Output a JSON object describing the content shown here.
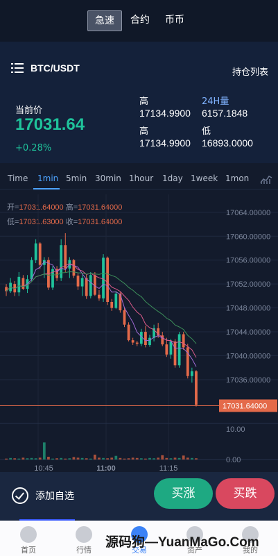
{
  "top_tabs": [
    {
      "label": "急速",
      "active": true
    },
    {
      "label": "合约",
      "active": false
    },
    {
      "label": "币币",
      "active": false
    }
  ],
  "header": {
    "pair": "BTC/USDT",
    "holdings_label": "持仓列表",
    "price_label": "当前价",
    "price": "17031.64",
    "change": "+0.28%",
    "stats": {
      "high1_label": "高",
      "high1_value": "17134.9900",
      "volume_label": "24H量",
      "volume_value": "6157.1848",
      "high2_label": "高",
      "high2_value": "17134.9900",
      "low_label": "低",
      "low_value": "16893.0000"
    }
  },
  "intervals": [
    "Time",
    "1min",
    "5min",
    "30min",
    "1hour",
    "1day",
    "1week",
    "1mon"
  ],
  "active_interval": "1min",
  "ohlc": {
    "open_label": "开=",
    "open": "17031.64000",
    "high_label": "高=",
    "high": "17031.64000",
    "low_label": "低=",
    "low": "17031.63000",
    "close_label": "收=",
    "close": "17031.64000"
  },
  "chart_data": {
    "type": "candlestick",
    "y_ticks": [
      "17064.00000",
      "17060.00000",
      "17056.00000",
      "17052.00000",
      "17048.00000",
      "17044.00000",
      "17040.00000",
      "17036.00000"
    ],
    "y_tick_values": [
      17064,
      17060,
      17056,
      17052,
      17048,
      17044,
      17040,
      17036
    ],
    "ylim": [
      17031,
      17067
    ],
    "current_price_label": "17031.64000",
    "current_price": 17031.64,
    "volume_ticks": [
      "10.00",
      "0.00"
    ],
    "volume_ylim": [
      0,
      10
    ],
    "x_ticks": [
      "10:45",
      "11:00",
      "11:15"
    ],
    "candles": [
      [
        17051.5,
        17052,
        17050,
        17050.8
      ],
      [
        17050.8,
        17053,
        17050.5,
        17052.2
      ],
      [
        17052,
        17052.5,
        17050,
        17050.6
      ],
      [
        17050.6,
        17054,
        17050,
        17053.2
      ],
      [
        17053,
        17053.5,
        17051,
        17051.2
      ],
      [
        17051.2,
        17053.5,
        17050.5,
        17052.8
      ],
      [
        17052.8,
        17056.5,
        17052.5,
        17056
      ],
      [
        17056,
        17059.5,
        17055.5,
        17058.8
      ],
      [
        17058.8,
        17059,
        17054.5,
        17055.2
      ],
      [
        17055.2,
        17056.5,
        17053,
        17056
      ],
      [
        17056,
        17056.5,
        17051,
        17051.4
      ],
      [
        17051.4,
        17055,
        17051,
        17054.5
      ],
      [
        17054.5,
        17055,
        17052.5,
        17053
      ],
      [
        17053,
        17059.5,
        17052.5,
        17058.5
      ],
      [
        17058.5,
        17060.5,
        17054,
        17054.6
      ],
      [
        17054.6,
        17056.5,
        17053,
        17056
      ],
      [
        17056,
        17056.2,
        17053,
        17053.4
      ],
      [
        17053.4,
        17053.8,
        17051,
        17051.6
      ],
      [
        17051.6,
        17053.5,
        17050,
        17053
      ],
      [
        17053,
        17053.6,
        17049.5,
        17050
      ],
      [
        17050,
        17054,
        17049.6,
        17053.5
      ],
      [
        17053.5,
        17054,
        17050,
        17050.2
      ],
      [
        17050.2,
        17051,
        17049.2,
        17049.6
      ],
      [
        17049.6,
        17057,
        17049,
        17056.4
      ],
      [
        17056.4,
        17056.6,
        17048.5,
        17049
      ],
      [
        17049,
        17049.5,
        17047.5,
        17048
      ],
      [
        17048,
        17050.8,
        17047.8,
        17050.4
      ],
      [
        17050.4,
        17050.6,
        17047.2,
        17047.6
      ],
      [
        17047.6,
        17048,
        17044.8,
        17045.2
      ],
      [
        17045.2,
        17045.6,
        17042.4,
        17042.6
      ],
      [
        17042.6,
        17043,
        17041.8,
        17042.2
      ],
      [
        17042.2,
        17042.5,
        17041.6,
        17042
      ],
      [
        17042,
        17044.5,
        17041.6,
        17044
      ],
      [
        17044,
        17045,
        17041.4,
        17041.8
      ],
      [
        17041.8,
        17043.5,
        17041.5,
        17043
      ],
      [
        17043,
        17045.2,
        17042.4,
        17044.6
      ],
      [
        17044.6,
        17045.5,
        17043,
        17043.4
      ],
      [
        17043.4,
        17044,
        17041.6,
        17041.9
      ],
      [
        17041.9,
        17043,
        17039.8,
        17040.2
      ],
      [
        17040.2,
        17042.8,
        17039.5,
        17042.4
      ],
      [
        17042.4,
        17042.8,
        17038,
        17038.4
      ],
      [
        17038.4,
        17044,
        17038,
        17043.6
      ],
      [
        17043.6,
        17044,
        17041,
        17041.4
      ],
      [
        17041.4,
        17042,
        17036.2,
        17036.6
      ],
      [
        17036.6,
        17038,
        17035.5,
        17037.4
      ],
      [
        17037.4,
        17037.6,
        17031.5,
        17031.8
      ]
    ],
    "volumes": [
      0.3,
      0.5,
      0.4,
      0.3,
      0.6,
      0.4,
      0.5,
      0.4,
      0.6,
      5.6,
      0.9,
      0.3,
      0.4,
      0.5,
      0.3,
      0.4,
      0.8,
      0.6,
      0.5,
      0.4,
      0.3,
      1.6,
      0.6,
      0.5,
      0.4,
      0.6,
      1.2,
      0.5,
      0.3,
      0.4,
      0.6,
      0.5,
      0.4,
      0.3,
      0.5,
      0.4,
      0.6,
      1.4,
      0.5,
      0.4,
      0.6,
      0.5,
      1.3,
      0.6,
      0.5,
      0.4
    ],
    "colors": {
      "up": "#1fc39b",
      "down": "#e46a4a",
      "price_line": "#e46a4a"
    }
  },
  "bottom_bar": {
    "favorite_label": "添加自选",
    "buy_label": "买涨",
    "sell_label": "买跌"
  },
  "tabbar": [
    {
      "label": "首页",
      "icon": "home-icon",
      "active": false
    },
    {
      "label": "行情",
      "icon": "market-icon",
      "active": false
    },
    {
      "label": "交易",
      "icon": "trade-icon",
      "active": true
    },
    {
      "label": "资产",
      "icon": "assets-icon",
      "active": false
    },
    {
      "label": "我的",
      "icon": "profile-icon",
      "active": false
    }
  ],
  "watermark": "源码狗—YuanMaGo.Com"
}
